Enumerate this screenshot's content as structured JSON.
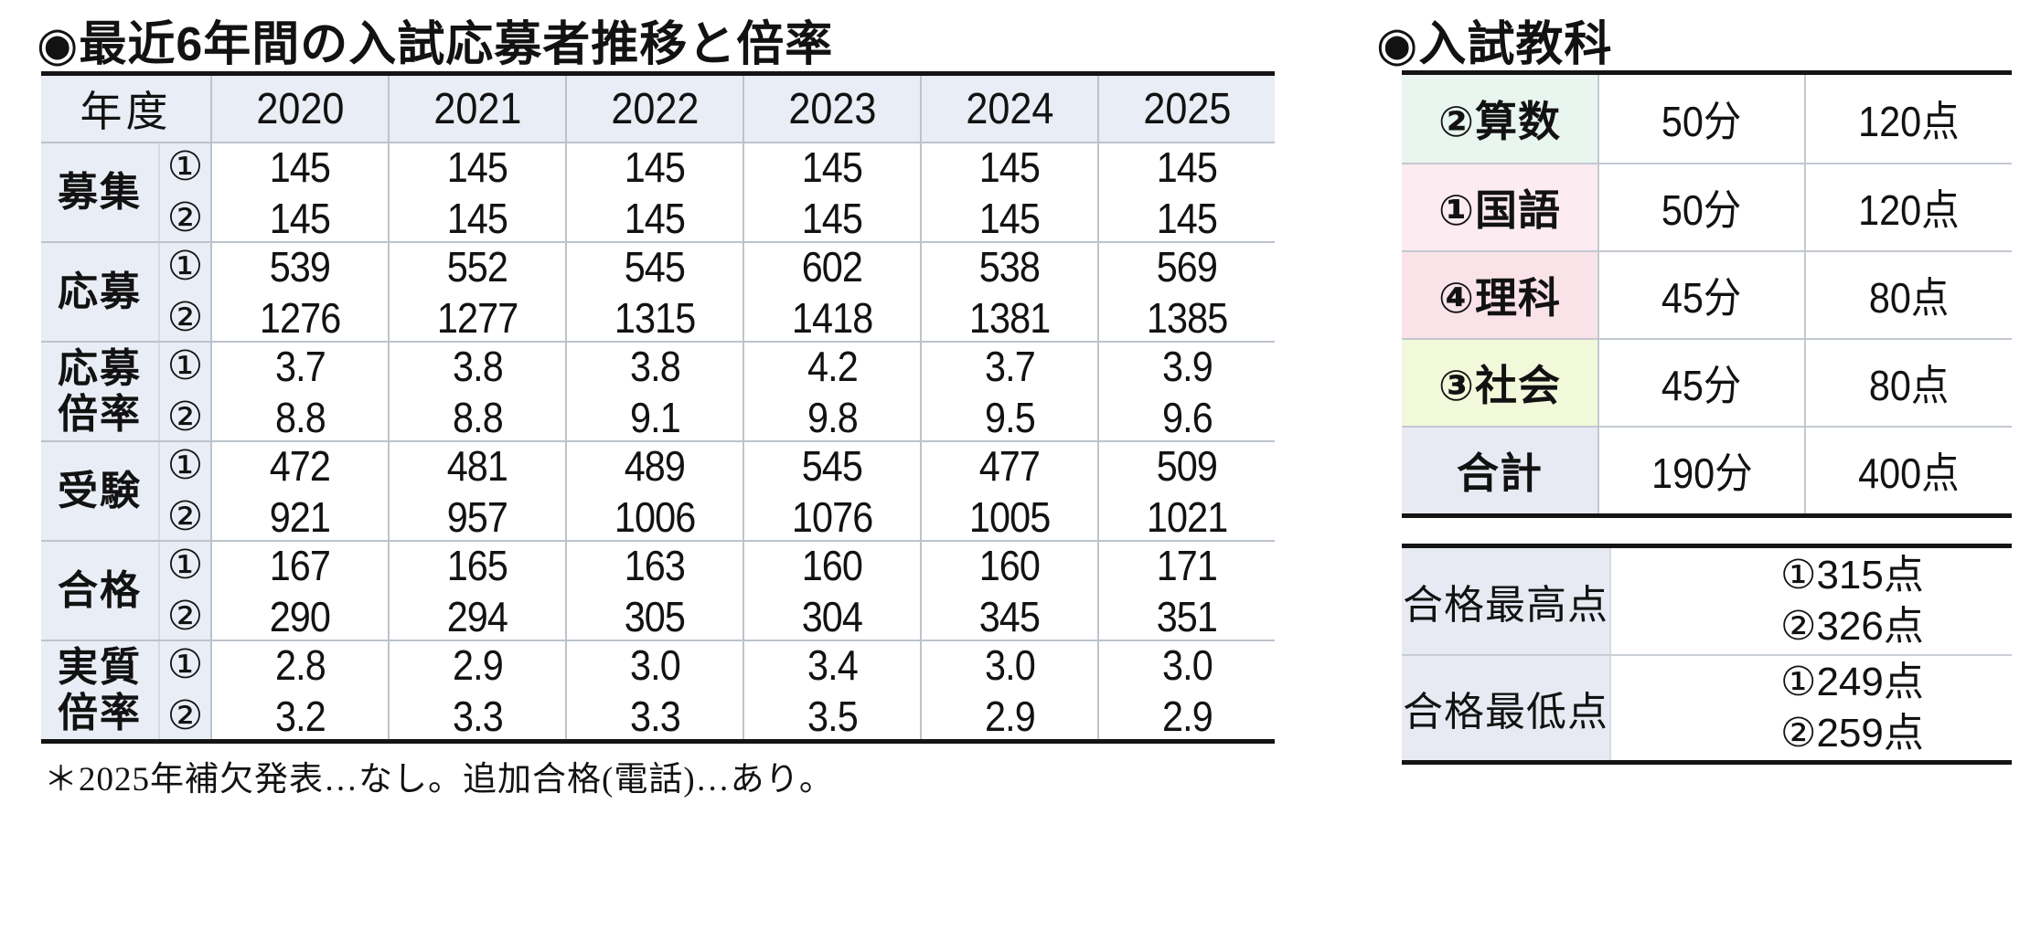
{
  "colors": {
    "page_bg": "#ffffff",
    "thick_border": "#141414",
    "grid_line": "#bcc3cc",
    "light_divider": "#d6dbe2",
    "header_bg": "#e9edf5",
    "math_row_bg": "#e9f6ef",
    "japanese_row_bg": "#fcebf1",
    "science_row_bg": "#f9e3e9",
    "social_row_bg": "#f2f8da",
    "total_row_bg": "#e7eaf2"
  },
  "left": {
    "title": "◉最近6年間の入試応募者推移と倍率",
    "footnote": "＊2025年補欠発表…なし。追加合格(電話)…あり。",
    "table": {
      "corner": "年度",
      "years": [
        "2020",
        "2021",
        "2022",
        "2023",
        "2024",
        "2025"
      ],
      "rows": [
        {
          "label": "募集",
          "m1": "①",
          "m2": "②",
          "v1": [
            "145",
            "145",
            "145",
            "145",
            "145",
            "145"
          ],
          "v2": [
            "145",
            "145",
            "145",
            "145",
            "145",
            "145"
          ]
        },
        {
          "label": "応募",
          "m1": "①",
          "m2": "②",
          "v1": [
            "539",
            "552",
            "545",
            "602",
            "538",
            "569"
          ],
          "v2": [
            "1276",
            "1277",
            "1315",
            "1418",
            "1381",
            "1385"
          ]
        },
        {
          "label": "応募倍率",
          "m1": "①",
          "m2": "②",
          "v1": [
            "3.7",
            "3.8",
            "3.8",
            "4.2",
            "3.7",
            "3.9"
          ],
          "v2": [
            "8.8",
            "8.8",
            "9.1",
            "9.8",
            "9.5",
            "9.6"
          ]
        },
        {
          "label": "受験",
          "m1": "①",
          "m2": "②",
          "v1": [
            "472",
            "481",
            "489",
            "545",
            "477",
            "509"
          ],
          "v2": [
            "921",
            "957",
            "1006",
            "1076",
            "1005",
            "1021"
          ]
        },
        {
          "label": "合格",
          "m1": "①",
          "m2": "②",
          "v1": [
            "167",
            "165",
            "163",
            "160",
            "160",
            "171"
          ],
          "v2": [
            "290",
            "294",
            "305",
            "304",
            "345",
            "351"
          ]
        },
        {
          "label": "実質倍率",
          "m1": "①",
          "m2": "②",
          "v1": [
            "2.8",
            "2.9",
            "3.0",
            "3.4",
            "3.0",
            "3.0"
          ],
          "v2": [
            "3.2",
            "3.3",
            "3.3",
            "3.5",
            "2.9",
            "2.9"
          ]
        }
      ]
    }
  },
  "right": {
    "title": "◉入試教科",
    "subjects": {
      "rows": [
        {
          "subject": "②算数",
          "time": "50分",
          "points": "120点"
        },
        {
          "subject": "①国語",
          "time": "50分",
          "points": "120点"
        },
        {
          "subject": "④理科",
          "time": "45分",
          "points": "80点"
        },
        {
          "subject": "③社会",
          "time": "45分",
          "points": "80点"
        },
        {
          "subject": "合計",
          "time": "190分",
          "points": "400点"
        }
      ]
    },
    "scores": {
      "rows": [
        {
          "label": "合格最高点",
          "line1": "①315点",
          "line2": "②326点"
        },
        {
          "label": "合格最低点",
          "line1": "①249点",
          "line2": "②259点"
        }
      ]
    }
  }
}
